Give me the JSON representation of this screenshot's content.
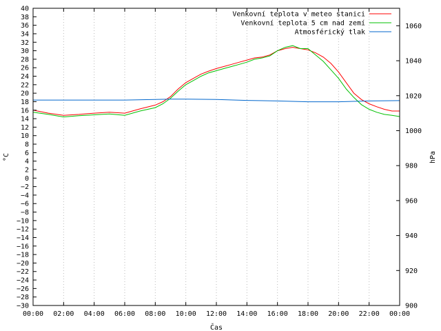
{
  "chart_data": {
    "type": "line",
    "xlabel": "Čas",
    "ylabel": "°C",
    "y2label": "hPa",
    "x_ticks": [
      "00:00",
      "02:00",
      "04:00",
      "06:00",
      "08:00",
      "10:00",
      "12:00",
      "14:00",
      "16:00",
      "18:00",
      "20:00",
      "22:00",
      "00:00"
    ],
    "xlim_hours": [
      0,
      24
    ],
    "ylim": [
      -30,
      40
    ],
    "y_ticks": [
      -30,
      -28,
      -26,
      -24,
      -22,
      -20,
      -18,
      -16,
      -14,
      -12,
      -10,
      -8,
      -6,
      -4,
      -2,
      0,
      2,
      4,
      6,
      8,
      10,
      12,
      14,
      16,
      18,
      20,
      22,
      24,
      26,
      28,
      30,
      32,
      34,
      36,
      38,
      40
    ],
    "y2lim": [
      900,
      1070
    ],
    "y2_ticks": [
      900,
      920,
      940,
      960,
      980,
      1000,
      1020,
      1040,
      1060
    ],
    "grid": true,
    "legend_position": "top-right",
    "series": [
      {
        "name": "Venkovní teplota v meteo stanici",
        "color": "#ff0000",
        "axis": "left",
        "x": [
          0,
          1,
          2,
          3,
          4,
          5,
          6,
          7,
          8,
          8.5,
          9,
          9.5,
          10,
          10.5,
          11,
          11.5,
          12,
          12.5,
          13,
          13.5,
          14,
          14.5,
          15,
          15.5,
          16,
          16.5,
          17,
          17.5,
          18,
          18.5,
          19,
          19.5,
          20,
          20.5,
          21,
          21.5,
          22,
          22.5,
          23,
          23.5,
          24
        ],
        "y": [
          16,
          15.3,
          14.8,
          15,
          15.3,
          15.5,
          15.3,
          16.3,
          17.2,
          18,
          19.2,
          21,
          22.5,
          23.5,
          24.5,
          25.2,
          25.8,
          26.3,
          26.8,
          27.3,
          27.8,
          28.3,
          28.5,
          29,
          30,
          30.5,
          30.8,
          30.5,
          30.2,
          29.5,
          28.5,
          27,
          25,
          22.5,
          20,
          18.5,
          17.5,
          16.8,
          16.2,
          15.8,
          15.8
        ]
      },
      {
        "name": "Venkovní teplota 5 cm nad zemí",
        "color": "#00c000",
        "axis": "left",
        "x": [
          0,
          1,
          2,
          3,
          4,
          5,
          6,
          7,
          8,
          8.5,
          9,
          9.5,
          10,
          10.5,
          11,
          11.5,
          12,
          12.5,
          13,
          13.5,
          14,
          14.5,
          15,
          15.5,
          16,
          16.5,
          17,
          17.5,
          18,
          18.5,
          19,
          19.5,
          20,
          20.5,
          21,
          21.5,
          22,
          22.5,
          23,
          23.5,
          24
        ],
        "y": [
          15.5,
          15,
          14.4,
          14.7,
          14.9,
          15.1,
          14.8,
          15.8,
          16.6,
          17.5,
          18.8,
          20.5,
          22,
          23,
          24,
          24.8,
          25.3,
          25.8,
          26.3,
          26.8,
          27.3,
          28,
          28.3,
          28.8,
          30,
          30.8,
          31.2,
          30.5,
          30.5,
          29,
          27.5,
          25.5,
          23.5,
          21,
          19,
          17.3,
          16.2,
          15.5,
          15,
          14.8,
          14.5
        ]
      },
      {
        "name": "Atmosférický tlak",
        "color": "#0066cc",
        "axis": "right",
        "x": [
          0,
          2,
          4,
          6,
          8,
          9,
          10,
          12,
          14,
          16,
          18,
          20,
          22,
          24
        ],
        "y": [
          1017.5,
          1017.5,
          1017.5,
          1017.5,
          1017.8,
          1018,
          1018,
          1017.8,
          1017.3,
          1017,
          1016.5,
          1016.5,
          1017,
          1017.2
        ]
      }
    ]
  }
}
